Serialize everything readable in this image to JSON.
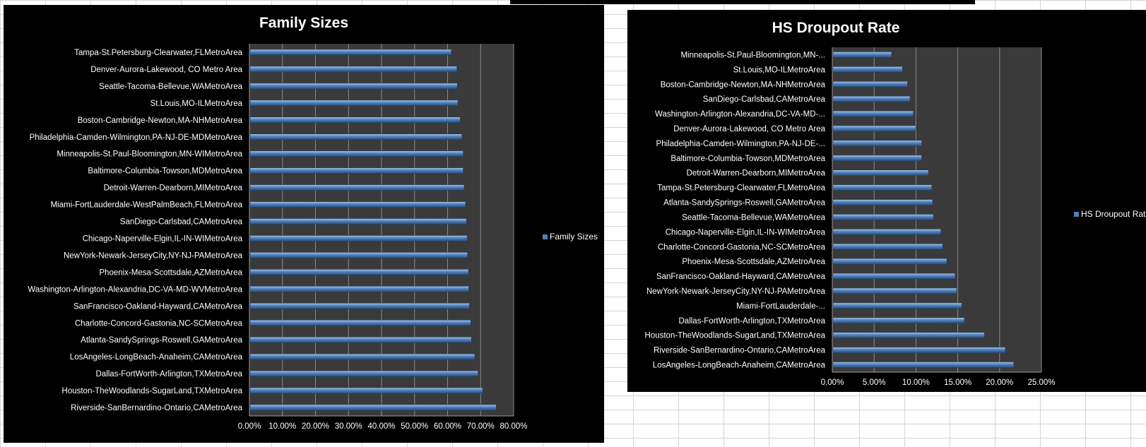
{
  "chart_data": [
    {
      "type": "bar",
      "orientation": "horizontal",
      "title": "Family Sizes",
      "categories": [
        "Tampa-St.Petersburg-Clearwater,FLMetroArea",
        "Denver-Aurora-Lakewood, CO Metro Area",
        "Seattle-Tacoma-Bellevue,WAMetroArea",
        "St.Louis,MO-ILMetroArea",
        "Boston-Cambridge-Newton,MA-NHMetroArea",
        "Philadelphia-Camden-Wilmington,PA-NJ-DE-MDMetroArea",
        "Minneapolis-St.Paul-Bloomington,MN-WIMetroArea",
        "Baltimore-Columbia-Towson,MDMetroArea",
        "Detroit-Warren-Dearborn,MIMetroArea",
        "Miami-FortLauderdale-WestPalmBeach,FLMetroArea",
        "SanDiego-Carlsbad,CAMetroArea",
        "Chicago-Naperville-Elgin,IL-IN-WIMetroArea",
        "NewYork-Newark-JerseyCity,NY-NJ-PAMetroArea",
        "Phoenix-Mesa-Scottsdale,AZMetroArea",
        "Washington-Arlington-Alexandria,DC-VA-MD-WVMetroArea",
        "SanFrancisco-Oakland-Hayward,CAMetroArea",
        "Charlotte-Concord-Gastonia,NC-SCMetroArea",
        "Atlanta-SandySprings-Roswell,GAMetroArea",
        "LosAngeles-LongBeach-Anaheim,CAMetroArea",
        "Dallas-FortWorth-Arlington,TXMetroArea",
        "Houston-TheWoodlands-SugarLand,TXMetroArea",
        "Riverside-SanBernardino-Ontario,CAMetroArea"
      ],
      "series": [
        {
          "name": "Family Sizes",
          "values": [
            0.609,
            0.626,
            0.627,
            0.629,
            0.636,
            0.641,
            0.645,
            0.645,
            0.648,
            0.652,
            0.655,
            0.657,
            0.658,
            0.661,
            0.662,
            0.664,
            0.668,
            0.67,
            0.68,
            0.69,
            0.704,
            0.745
          ]
        }
      ],
      "xlim": [
        0,
        0.8
      ],
      "xticks": [
        "0.00%",
        "10.00%",
        "20.00%",
        "30.00%",
        "40.00%",
        "50.00%",
        "60.00%",
        "70.00%",
        "80.00%"
      ],
      "grid": true,
      "legend": "right",
      "colors": {
        "bar": "#4f81bd",
        "bar_light": "#a9c4ea",
        "plot_bg": "#3a3a3a",
        "grid": "#8a8a8a"
      }
    },
    {
      "type": "bar",
      "orientation": "horizontal",
      "title": "HS Droupout Rate",
      "categories": [
        "Minneapolis-St.Paul-Bloomington,MN-...",
        "St.Louis,MO-ILMetroArea",
        "Boston-Cambridge-Newton,MA-NHMetroArea",
        "SanDiego-Carlsbad,CAMetroArea",
        "Washington-Arlington-Alexandria,DC-VA-MD-...",
        "Denver-Aurora-Lakewood, CO Metro Area",
        "Philadelphia-Camden-Wilmington,PA-NJ-DE-...",
        "Baltimore-Columbia-Towson,MDMetroArea",
        "Detroit-Warren-Dearborn,MIMetroArea",
        "Tampa-St.Petersburg-Clearwater,FLMetroArea",
        "Atlanta-SandySprings-Roswell,GAMetroArea",
        "Seattle-Tacoma-Bellevue,WAMetroArea",
        "Chicago-Naperville-Elgin,IL-IN-WIMetroArea",
        "Charlotte-Concord-Gastonia,NC-SCMetroArea",
        "Phoenix-Mesa-Scottsdale,AZMetroArea",
        "SanFrancisco-Oakland-Hayward,CAMetroArea",
        "NewYork-Newark-JerseyCity,NY-NJ-PAMetroArea",
        "Miami-FortLauderdale-...",
        "Dallas-FortWorth-Arlington,TXMetroArea",
        "Houston-TheWoodlands-SugarLand,TXMetroArea",
        "Riverside-SanBernardino-Ontario,CAMetroArea",
        "LosAngeles-LongBeach-Anaheim,CAMetroArea"
      ],
      "series": [
        {
          "name": "HS Droupout Rate",
          "values": [
            0.07,
            0.083,
            0.089,
            0.092,
            0.096,
            0.099,
            0.106,
            0.106,
            0.114,
            0.118,
            0.119,
            0.12,
            0.129,
            0.131,
            0.136,
            0.146,
            0.148,
            0.154,
            0.157,
            0.181,
            0.206,
            0.216
          ]
        }
      ],
      "xlim": [
        0,
        0.25
      ],
      "xticks": [
        "0.00%",
        "5.00%",
        "10.00%",
        "15.00%",
        "20.00%",
        "25.00%"
      ],
      "grid": true,
      "legend": "right",
      "colors": {
        "bar": "#4f81bd",
        "bar_light": "#a9c4ea",
        "plot_bg": "#3a3a3a",
        "grid": "#8a8a8a"
      }
    }
  ]
}
